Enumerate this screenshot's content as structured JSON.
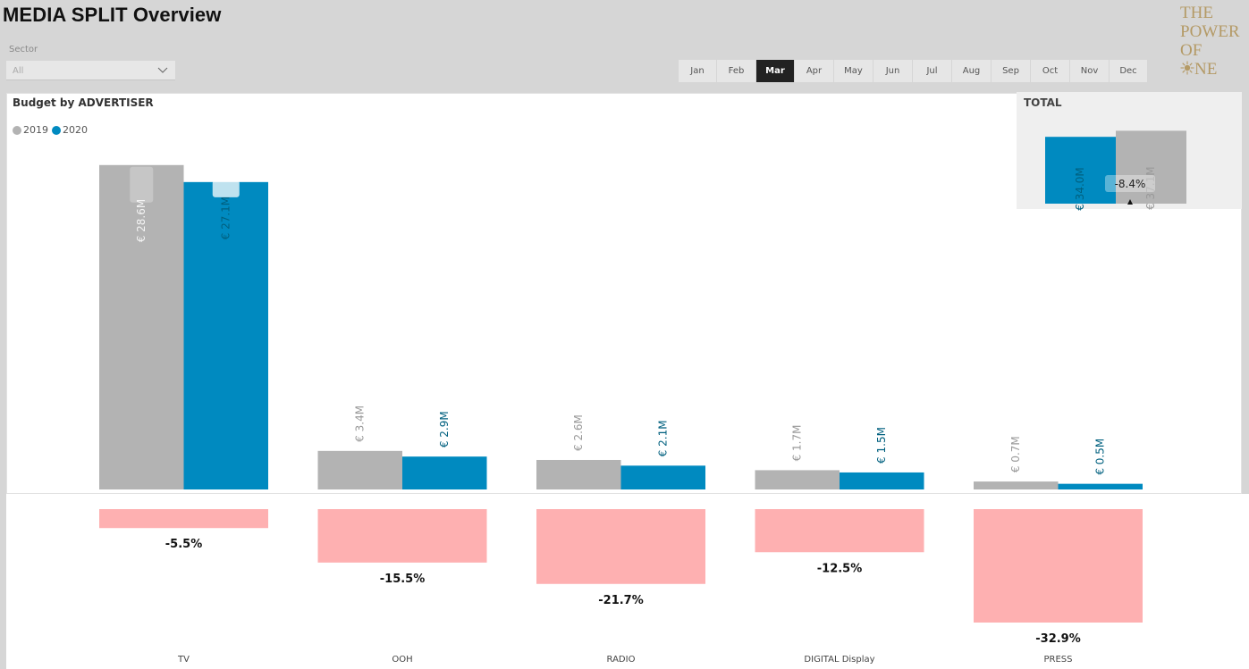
{
  "header": {
    "title": "MEDIA SPLIT Overview",
    "sector_label": "Sector",
    "sector_value": "All"
  },
  "months": {
    "items": [
      "Jan",
      "Feb",
      "Mar",
      "Apr",
      "May",
      "Jun",
      "Jul",
      "Aug",
      "Sep",
      "Oct",
      "Nov",
      "Dec"
    ],
    "selected": "Mar"
  },
  "logo": {
    "line1": "THE",
    "line2": "POWER",
    "line3": "OF",
    "line4": "NE"
  },
  "colors": {
    "series_2019": "#b3b3b3",
    "series_2020": "#008ac0",
    "label_2019": "#999999",
    "label_2020": "#00607f",
    "delta_bar": "#feb0b1",
    "selected_month": "#222222"
  },
  "chart": {
    "title": "Budget by ADVERTISER",
    "legend": [
      "2019",
      "2020"
    ]
  },
  "chart_data": [
    {
      "type": "bar",
      "title": "Budget by ADVERTISER",
      "categories": [
        "TV",
        "OOH",
        "RADIO",
        "DIGITAL Display",
        "PRESS"
      ],
      "series": [
        {
          "name": "2019",
          "values": [
            28.6,
            3.4,
            2.6,
            1.7,
            0.7
          ],
          "labels": [
            "€ 28.6M",
            "€ 3.4M",
            "€ 2.6M",
            "€ 1.7M",
            "€ 0.7M"
          ]
        },
        {
          "name": "2020",
          "values": [
            27.1,
            2.9,
            2.1,
            1.5,
            0.5
          ],
          "labels": [
            "€ 27.1M",
            "€ 2.9M",
            "€ 2.1M",
            "€ 1.5M",
            "€ 0.5M"
          ]
        }
      ],
      "change": {
        "values": [
          -5.5,
          -15.5,
          -21.7,
          -12.5,
          -32.9
        ],
        "labels": [
          "-5.5%",
          "-15.5%",
          "-21.7%",
          "-12.5%",
          "-32.9%"
        ]
      },
      "legend_position": "top-left",
      "grid": false
    },
    {
      "type": "bar",
      "title": "TOTAL",
      "series": [
        {
          "name": "2020",
          "value": 34.0,
          "label": "€ 34.0M"
        },
        {
          "name": "2019",
          "value": 37.1,
          "label": "€ 37.1M"
        }
      ],
      "change_label": "-8.4%"
    }
  ]
}
